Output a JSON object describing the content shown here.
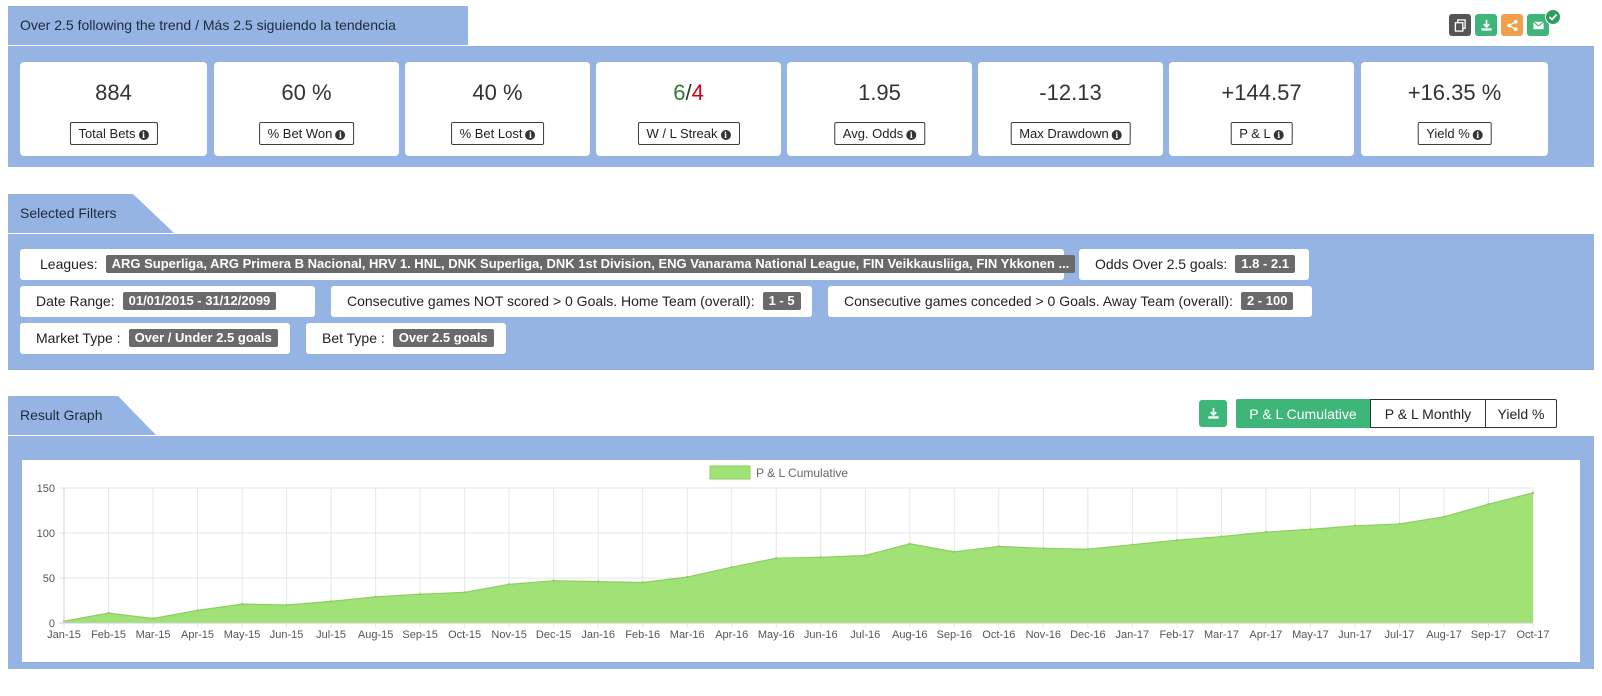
{
  "header": {
    "title": "Over 2.5 following the trend / Más 2.5 siguiendo la tendencia",
    "tools": [
      {
        "name": "copy-icon",
        "color": "#555555"
      },
      {
        "name": "download-icon",
        "color": "#3fb679"
      },
      {
        "name": "share-icon",
        "color": "#f0a04b"
      },
      {
        "name": "email-icon",
        "color": "#3fb679"
      },
      {
        "name": "check-badge-icon",
        "color": "#2e9d5b"
      }
    ]
  },
  "stats": {
    "total_bets": {
      "value": "884",
      "label": "Total Bets"
    },
    "bet_won": {
      "value": "60 %",
      "label": "% Bet Won"
    },
    "bet_lost": {
      "value": "40 %",
      "label": "% Bet Lost"
    },
    "streak": {
      "win": "6",
      "sep": "/",
      "loss": "4",
      "label": "W / L Streak"
    },
    "avg_odds": {
      "value": "1.95",
      "label": "Avg. Odds"
    },
    "max_drawdown": {
      "value": "-12.13",
      "label": "Max Drawdown"
    },
    "pl": {
      "value": "+144.57",
      "label": "P & L"
    },
    "yield": {
      "value": "+16.35 %",
      "label": "Yield %"
    }
  },
  "filters": {
    "title": "Selected Filters",
    "leagues": {
      "key": "Leagues:",
      "value": "ARG Superliga, ARG Primera B Nacional, HRV 1. HNL, DNK Superliga, DNK 1st Division, ENG Vanarama National League, FIN Veikkausliiga, FIN Ykkonen ..."
    },
    "odds": {
      "key": "Odds Over 2.5 goals:",
      "value": "1.8 - 2.1"
    },
    "date_range": {
      "key": "Date Range:",
      "value": "01/01/2015 - 31/12/2099"
    },
    "not_scored": {
      "key": "Consecutive games NOT scored > 0 Goals. Home Team (overall):",
      "value": "1 - 5"
    },
    "conceded": {
      "key": "Consecutive games conceded > 0 Goals. Away Team (overall):",
      "value": "2 - 100"
    },
    "market_type": {
      "key": "Market Type :",
      "value": "Over / Under 2.5 goals"
    },
    "bet_type": {
      "key": "Bet Type :",
      "value": "Over 2.5 goals"
    }
  },
  "result_graph": {
    "title": "Result Graph",
    "tabs": [
      "P & L Cumulative",
      "P & L Monthly",
      "Yield %"
    ],
    "active_tab": 0
  },
  "chart_data": {
    "type": "area",
    "series": [
      {
        "name": "P & L Cumulative",
        "color": "#a1e277",
        "line_color": "#8ccf60"
      }
    ],
    "x": [
      "Jan-15",
      "Feb-15",
      "Mar-15",
      "Apr-15",
      "May-15",
      "Jun-15",
      "Jul-15",
      "Aug-15",
      "Sep-15",
      "Oct-15",
      "Nov-15",
      "Dec-15",
      "Jan-16",
      "Feb-16",
      "Mar-16",
      "Apr-16",
      "May-16",
      "Jun-16",
      "Jul-16",
      "Aug-16",
      "Sep-16",
      "Oct-16",
      "Nov-16",
      "Dec-16",
      "Jan-17",
      "Feb-17",
      "Mar-17",
      "Apr-17",
      "May-17",
      "Jun-17",
      "Jul-17",
      "Aug-17",
      "Sep-17",
      "Oct-17"
    ],
    "values": [
      2,
      11,
      5,
      14,
      21,
      20,
      24,
      29,
      32,
      34,
      43,
      47,
      46,
      45,
      51,
      62,
      72,
      73,
      75,
      88,
      79,
      85,
      83,
      82,
      87,
      92,
      96,
      101,
      104,
      108,
      110,
      118,
      132,
      144.57
    ],
    "ylim": [
      0,
      150
    ],
    "yticks": [
      "0",
      "50",
      "100",
      "150"
    ],
    "grid": true,
    "legend": "top-center"
  }
}
